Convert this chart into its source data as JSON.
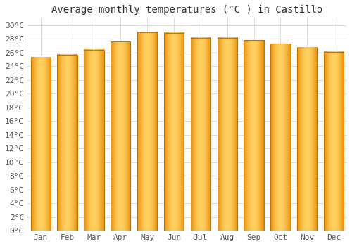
{
  "title": "Average monthly temperatures (°C ) in Castillo",
  "months": [
    "Jan",
    "Feb",
    "Mar",
    "Apr",
    "May",
    "Jun",
    "Jul",
    "Aug",
    "Sep",
    "Oct",
    "Nov",
    "Dec"
  ],
  "values": [
    25.3,
    25.7,
    26.4,
    27.6,
    29.0,
    28.9,
    28.2,
    28.2,
    27.8,
    27.3,
    26.7,
    26.1
  ],
  "bar_color_center": "#FFD060",
  "bar_color_edge": "#E8900A",
  "background_color": "#ffffff",
  "grid_color": "#dddddd",
  "ylim": [
    0,
    31
  ],
  "ytick_step": 2,
  "title_fontsize": 10,
  "tick_fontsize": 8,
  "font_family": "monospace"
}
